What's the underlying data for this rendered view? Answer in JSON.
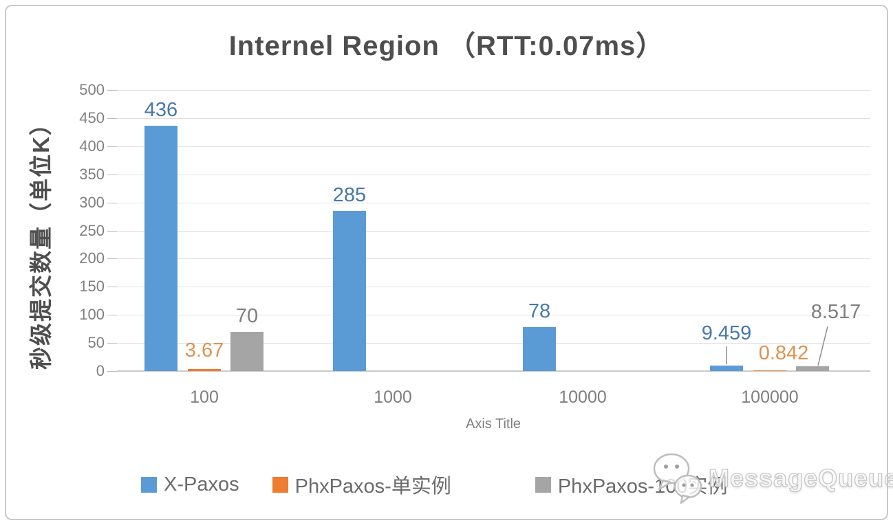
{
  "watermark": {
    "text": "MessageQueue",
    "icon": "wechat-icon"
  },
  "colors": {
    "series_blue": "#5B9BD5",
    "series_orange": "#ED7D31",
    "series_gray": "#A5A5A5",
    "label_blue": "#4878A8",
    "label_orange": "#DE9352",
    "label_gray": "#7f7f7f",
    "gridline": "#e0e0e0",
    "axis_text": "#7f7f7f",
    "title_text": "#4e4e4e"
  },
  "chart_data": {
    "type": "bar",
    "title": "Internel Region （RTT:0.07ms）",
    "xlabel": "Axis Title",
    "ylabel": "秒级提交数量（单位K）",
    "ylim": [
      0,
      500
    ],
    "ytick_step": 50,
    "yticks": [
      0,
      50,
      100,
      150,
      200,
      250,
      300,
      350,
      400,
      450,
      500
    ],
    "categories": [
      "100",
      "1000",
      "10000",
      "100000"
    ],
    "grid": true,
    "legend_position": "bottom",
    "series": [
      {
        "name": "X-Paxos",
        "color": "#5B9BD5",
        "label_color": "#4878A8",
        "values": [
          436,
          285,
          78,
          9.459
        ],
        "labels": [
          "436",
          "285",
          "78",
          "9.459"
        ]
      },
      {
        "name": "PhxPaxos-单实例",
        "color": "#ED7D31",
        "label_color": "#DE9352",
        "values": [
          3.67,
          null,
          null,
          0.842
        ],
        "labels": [
          "3.67",
          null,
          null,
          "0.842"
        ]
      },
      {
        "name": "PhxPaxos-100实例",
        "color": "#A5A5A5",
        "label_color": "#7f7f7f",
        "values": [
          70,
          null,
          null,
          8.517
        ],
        "labels": [
          "70",
          null,
          null,
          "8.517"
        ]
      }
    ],
    "label_hints": {
      "0": {
        "3": {
          "dy": 24,
          "leader": "v"
        }
      },
      "1": {
        "0": {
          "dy": 4
        },
        "3": {
          "dx": 20,
          "dy": 2
        }
      },
      "2": {
        "3": {
          "dx": 34,
          "dy": 56,
          "leader": "d"
        }
      }
    }
  }
}
